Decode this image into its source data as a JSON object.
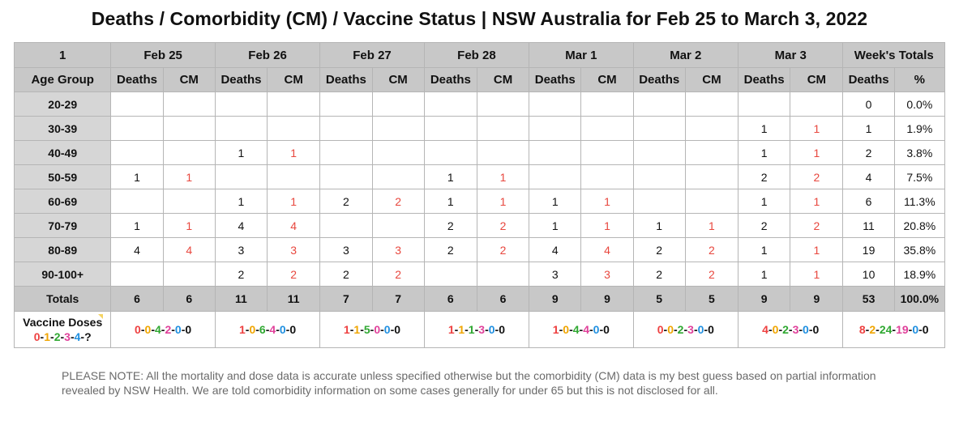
{
  "title": "Deaths / Comorbidity (CM) / Vaccine Status | NSW Australia for Feb 25 to March 3, 2022",
  "header_row1": {
    "corner": "1",
    "days": [
      "Feb 25",
      "Feb 26",
      "Feb 27",
      "Feb 28",
      "Mar 1",
      "Mar 2",
      "Mar 3"
    ],
    "week_totals": "Week's Totals"
  },
  "header_row2": {
    "age_group": "Age Group",
    "deaths": "Deaths",
    "cm": "CM",
    "pct": "%"
  },
  "rows": [
    {
      "age": "20-29",
      "cells": [
        "",
        "",
        "",
        "",
        "",
        "",
        "",
        "",
        "",
        "",
        "",
        "",
        "",
        ""
      ],
      "total": "0",
      "pct": "0.0%"
    },
    {
      "age": "30-39",
      "cells": [
        "",
        "",
        "",
        "",
        "",
        "",
        "",
        "",
        "",
        "",
        "",
        "",
        "1",
        "1"
      ],
      "total": "1",
      "pct": "1.9%"
    },
    {
      "age": "40-49",
      "cells": [
        "",
        "",
        "1",
        "1",
        "",
        "",
        "",
        "",
        "",
        "",
        "",
        "",
        "1",
        "1"
      ],
      "total": "2",
      "pct": "3.8%"
    },
    {
      "age": "50-59",
      "cells": [
        "1",
        "1",
        "",
        "",
        "",
        "",
        "1",
        "1",
        "",
        "",
        "",
        "",
        "2",
        "2"
      ],
      "total": "4",
      "pct": "7.5%"
    },
    {
      "age": "60-69",
      "cells": [
        "",
        "",
        "1",
        "1",
        "2",
        "2",
        "1",
        "1",
        "1",
        "1",
        "",
        "",
        "1",
        "1"
      ],
      "total": "6",
      "pct": "11.3%"
    },
    {
      "age": "70-79",
      "cells": [
        "1",
        "1",
        "4",
        "4",
        "",
        "",
        "2",
        "2",
        "1",
        "1",
        "1",
        "1",
        "2",
        "2"
      ],
      "total": "11",
      "pct": "20.8%"
    },
    {
      "age": "80-89",
      "cells": [
        "4",
        "4",
        "3",
        "3",
        "3",
        "3",
        "2",
        "2",
        "4",
        "4",
        "2",
        "2",
        "1",
        "1"
      ],
      "total": "19",
      "pct": "35.8%"
    },
    {
      "age": "90-100+",
      "cells": [
        "",
        "",
        "2",
        "2",
        "2",
        "2",
        "",
        "",
        "3",
        "3",
        "2",
        "2",
        "1",
        "1"
      ],
      "total": "10",
      "pct": "18.9%"
    }
  ],
  "totals": {
    "label": "Totals",
    "cells": [
      "6",
      "6",
      "11",
      "11",
      "7",
      "7",
      "6",
      "6",
      "9",
      "9",
      "5",
      "5",
      "9",
      "9"
    ],
    "total": "53",
    "pct": "100.0%"
  },
  "vaccine_doses": {
    "label_line1": "Vaccine Doses",
    "legend": [
      "0",
      "1",
      "2",
      "3",
      "4",
      "?"
    ],
    "days": [
      [
        "0",
        "0",
        "4",
        "2",
        "0",
        "0"
      ],
      [
        "1",
        "0",
        "6",
        "4",
        "0",
        "0"
      ],
      [
        "1",
        "1",
        "5",
        "0",
        "0",
        "0"
      ],
      [
        "1",
        "1",
        "1",
        "3",
        "0",
        "0"
      ],
      [
        "1",
        "0",
        "4",
        "4",
        "0",
        "0"
      ],
      [
        "0",
        "0",
        "2",
        "3",
        "0",
        "0"
      ],
      [
        "4",
        "0",
        "2",
        "3",
        "0",
        "0"
      ]
    ],
    "week": [
      "8",
      "2",
      "24",
      "19",
      "0",
      "0"
    ]
  },
  "colors": {
    "dose0": "#ee4040",
    "dose1": "#f0a500",
    "dose2": "#2fa831",
    "dose3": "#e0409a",
    "dose4": "#1f8fe0",
    "dose_unknown": "#111111",
    "cm_text": "#e8473e",
    "header_bg": "#c8c8c8",
    "age_bg": "#d6d6d6"
  },
  "note": "PLEASE NOTE: All the mortality and dose data is accurate unless specified otherwise but the comorbidity (CM) data is my best guess based on partial information revealed by NSW Health. We are told comorbidity information on some cases generally for under 65 but this is not disclosed for all."
}
